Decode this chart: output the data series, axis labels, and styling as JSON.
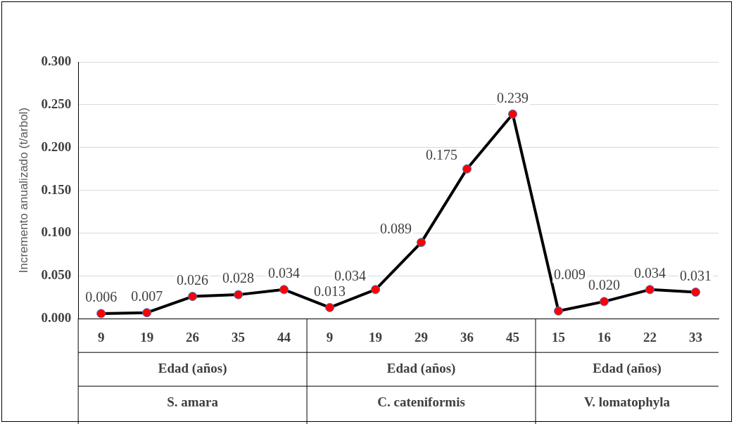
{
  "chart_data": {
    "type": "line",
    "ylabel": "Incremento anualizado (t/arbol)",
    "categories": [
      "9",
      "19",
      "26",
      "35",
      "44",
      "9",
      "19",
      "29",
      "36",
      "45",
      "15",
      "16",
      "22",
      "33"
    ],
    "series": [
      {
        "color": "#000000",
        "colors": [
          "#ff0000",
          "#ff0000",
          "#ff0000",
          "#ff0000",
          "#ff0000",
          "#ff0000",
          "#ff0000",
          "#ff0000",
          "#ff0000",
          "#ff0000",
          "#ff0000",
          "#ff0000",
          "#ff0000",
          "#ff0000"
        ],
        "values": [
          0.006,
          0.007,
          0.026,
          0.028,
          0.034,
          0.013,
          0.034,
          0.089,
          0.175,
          0.239,
          0.009,
          0.02,
          0.034,
          0.031
        ],
        "value_labels": [
          "0.006",
          "0.007",
          "0.026",
          "0.028",
          "0.034",
          "0.013",
          "0.034",
          "0.089",
          "0.175",
          "0.239",
          "0.009",
          "0.020",
          "0.034",
          "0.031"
        ]
      }
    ],
    "ylim": [
      0,
      0.3
    ],
    "yticks": [
      {
        "value": 0,
        "label": "0.000"
      },
      {
        "value": 0.05,
        "label": "0.050"
      },
      {
        "value": 0.1,
        "label": "0.100"
      },
      {
        "value": 0.15,
        "label": "0.150"
      },
      {
        "value": 0.2,
        "label": "0.200"
      },
      {
        "value": 0.25,
        "label": "0.250"
      },
      {
        "value": 0.3,
        "label": "0.300"
      }
    ],
    "grid": "y",
    "marker": "circle",
    "line_style": "solid",
    "legend": false,
    "annotations": [
      "Edad (años)",
      "Edad (años)",
      "Edad (años)",
      "S. amara",
      "C. cateniformis",
      "V. lomatophyla"
    ]
  }
}
